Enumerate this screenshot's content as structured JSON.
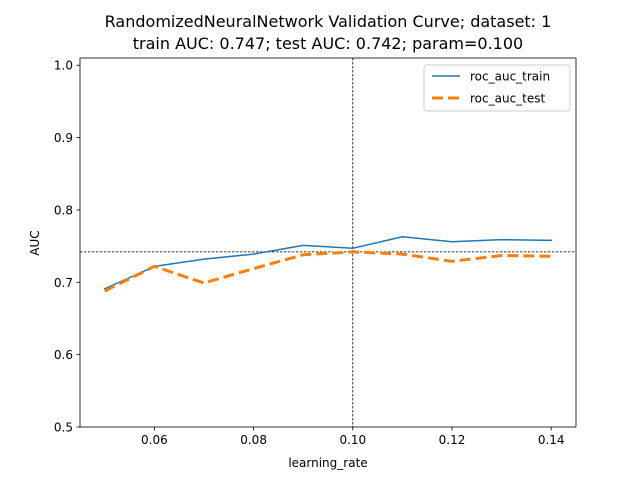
{
  "chart_data": {
    "type": "line",
    "title": "RandomizedNeuralNetwork Validation Curve; dataset: 1",
    "subtitle": "train AUC: 0.747; test AUC: 0.742; param=0.100",
    "xlabel": "learning_rate",
    "ylabel": "AUC",
    "xlim": [
      0.045,
      0.145
    ],
    "ylim": [
      0.5,
      1.01
    ],
    "x_ticks": [
      "0.06",
      "0.08",
      "0.10",
      "0.12",
      "0.14"
    ],
    "y_ticks": [
      "0.5",
      "0.6",
      "0.7",
      "0.8",
      "0.9",
      "1.0"
    ],
    "x": [
      0.05,
      0.06,
      0.07,
      0.08,
      0.09,
      0.1,
      0.11,
      0.12,
      0.13,
      0.14
    ],
    "series": [
      {
        "name": "roc_auc_train",
        "color": "#1f77b4",
        "style": "solid",
        "values": [
          0.691,
          0.722,
          0.732,
          0.739,
          0.751,
          0.747,
          0.763,
          0.756,
          0.759,
          0.758
        ]
      },
      {
        "name": "roc_auc_test",
        "color": "#ff7f0e",
        "style": "dashed",
        "values": [
          0.688,
          0.722,
          0.699,
          0.719,
          0.738,
          0.742,
          0.739,
          0.729,
          0.737,
          0.736
        ]
      }
    ],
    "reference_lines": {
      "vertical_x": 0.1,
      "horizontal_y": 0.742
    },
    "legend_position": "top-right",
    "grid": false
  }
}
